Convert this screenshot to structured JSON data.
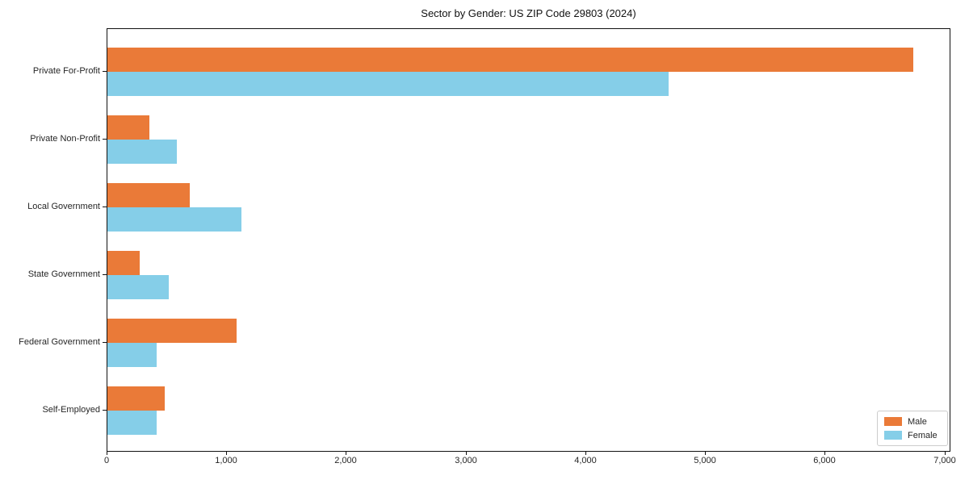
{
  "title": "Sector by Gender: US ZIP Code 29803 (2024)",
  "chart_data": {
    "type": "bar",
    "orientation": "horizontal",
    "title": "Sector by Gender: US ZIP Code 29803 (2024)",
    "categories": [
      "Private For-Profit",
      "Private Non-Profit",
      "Local Government",
      "State Government",
      "Federal Government",
      "Self-Employed"
    ],
    "series": [
      {
        "name": "Male",
        "color": "#ea7a38",
        "values": [
          6730,
          350,
          690,
          270,
          1080,
          480
        ]
      },
      {
        "name": "Female",
        "color": "#85cee8",
        "values": [
          4690,
          580,
          1120,
          510,
          410,
          410
        ]
      }
    ],
    "xlabel": "",
    "ylabel": "",
    "xlim": [
      0,
      7050
    ],
    "xticks": [
      0,
      1000,
      2000,
      3000,
      4000,
      5000,
      6000,
      7000
    ],
    "xtick_labels": [
      "0",
      "1,000",
      "2,000",
      "3,000",
      "4,000",
      "5,000",
      "6,000",
      "7,000"
    ],
    "grid": false,
    "legend_position": "lower right"
  },
  "colors": {
    "male": "#ea7a38",
    "female": "#85cee8",
    "spine": "#111111",
    "legend_border": "#cccccc"
  }
}
